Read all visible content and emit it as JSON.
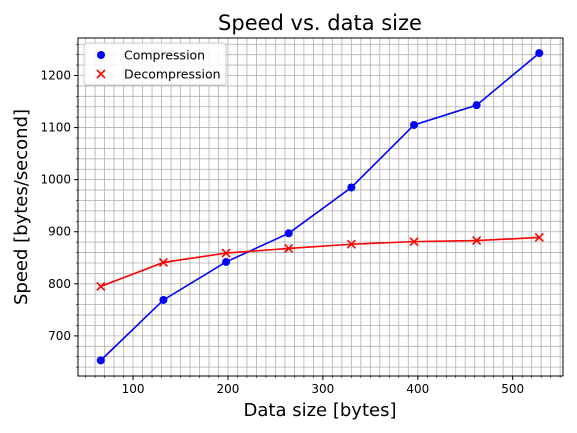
{
  "chart_data": {
    "type": "line",
    "title": "Speed vs. data size",
    "xlabel": "Data size [bytes]",
    "ylabel": "Speed [bytes/second]",
    "xlim": [
      42,
      553
    ],
    "ylim": [
      623,
      1272
    ],
    "xticks": [
      100,
      200,
      300,
      400,
      500
    ],
    "yticks": [
      700,
      800,
      900,
      1000,
      1100,
      1200
    ],
    "x_minor_step": 10,
    "y_minor_step": 20,
    "grid": true,
    "legend_position": "top-left",
    "x": [
      66,
      132,
      198,
      264,
      330,
      396,
      462,
      528
    ],
    "series": [
      {
        "name": "Compression",
        "color": "#0000ff",
        "marker": "circle",
        "values": [
          653,
          769,
          842,
          897,
          985,
          1105,
          1143,
          1243
        ]
      },
      {
        "name": "Decompression",
        "color": "#ff0000",
        "marker": "x",
        "values": [
          795,
          841,
          859,
          868,
          876,
          881,
          883,
          889
        ]
      }
    ]
  }
}
